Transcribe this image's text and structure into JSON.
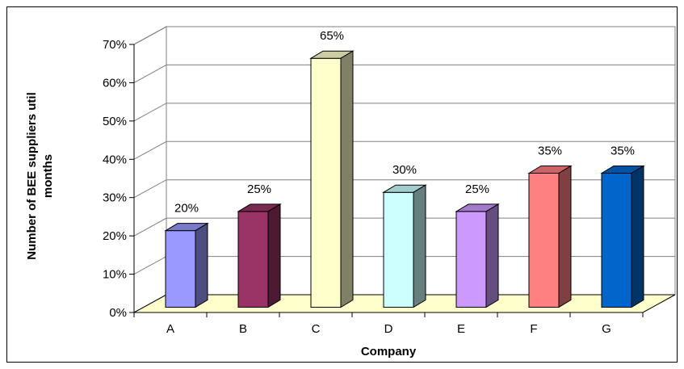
{
  "chart_data": {
    "type": "bar",
    "title": "",
    "xlabel": "Company",
    "ylabel_lines": [
      "Number of BEE suppliers util",
      "months"
    ],
    "categories": [
      "A",
      "B",
      "C",
      "D",
      "E",
      "F",
      "G"
    ],
    "values": [
      20,
      25,
      65,
      30,
      25,
      35,
      35
    ],
    "value_labels": [
      "20%",
      "25%",
      "65%",
      "30%",
      "25%",
      "35%",
      "35%"
    ],
    "ylim": [
      0,
      70
    ],
    "yticks": [
      "0%",
      "10%",
      "20%",
      "30%",
      "40%",
      "50%",
      "60%",
      "70%"
    ],
    "grid": true,
    "three_d": true,
    "bar_colors": [
      "#9999FF",
      "#993366",
      "#FFFFCC",
      "#CCFFFF",
      "#CC99FF",
      "#FF8080",
      "#0066CC"
    ],
    "floor_color": "#FFFFCC"
  }
}
